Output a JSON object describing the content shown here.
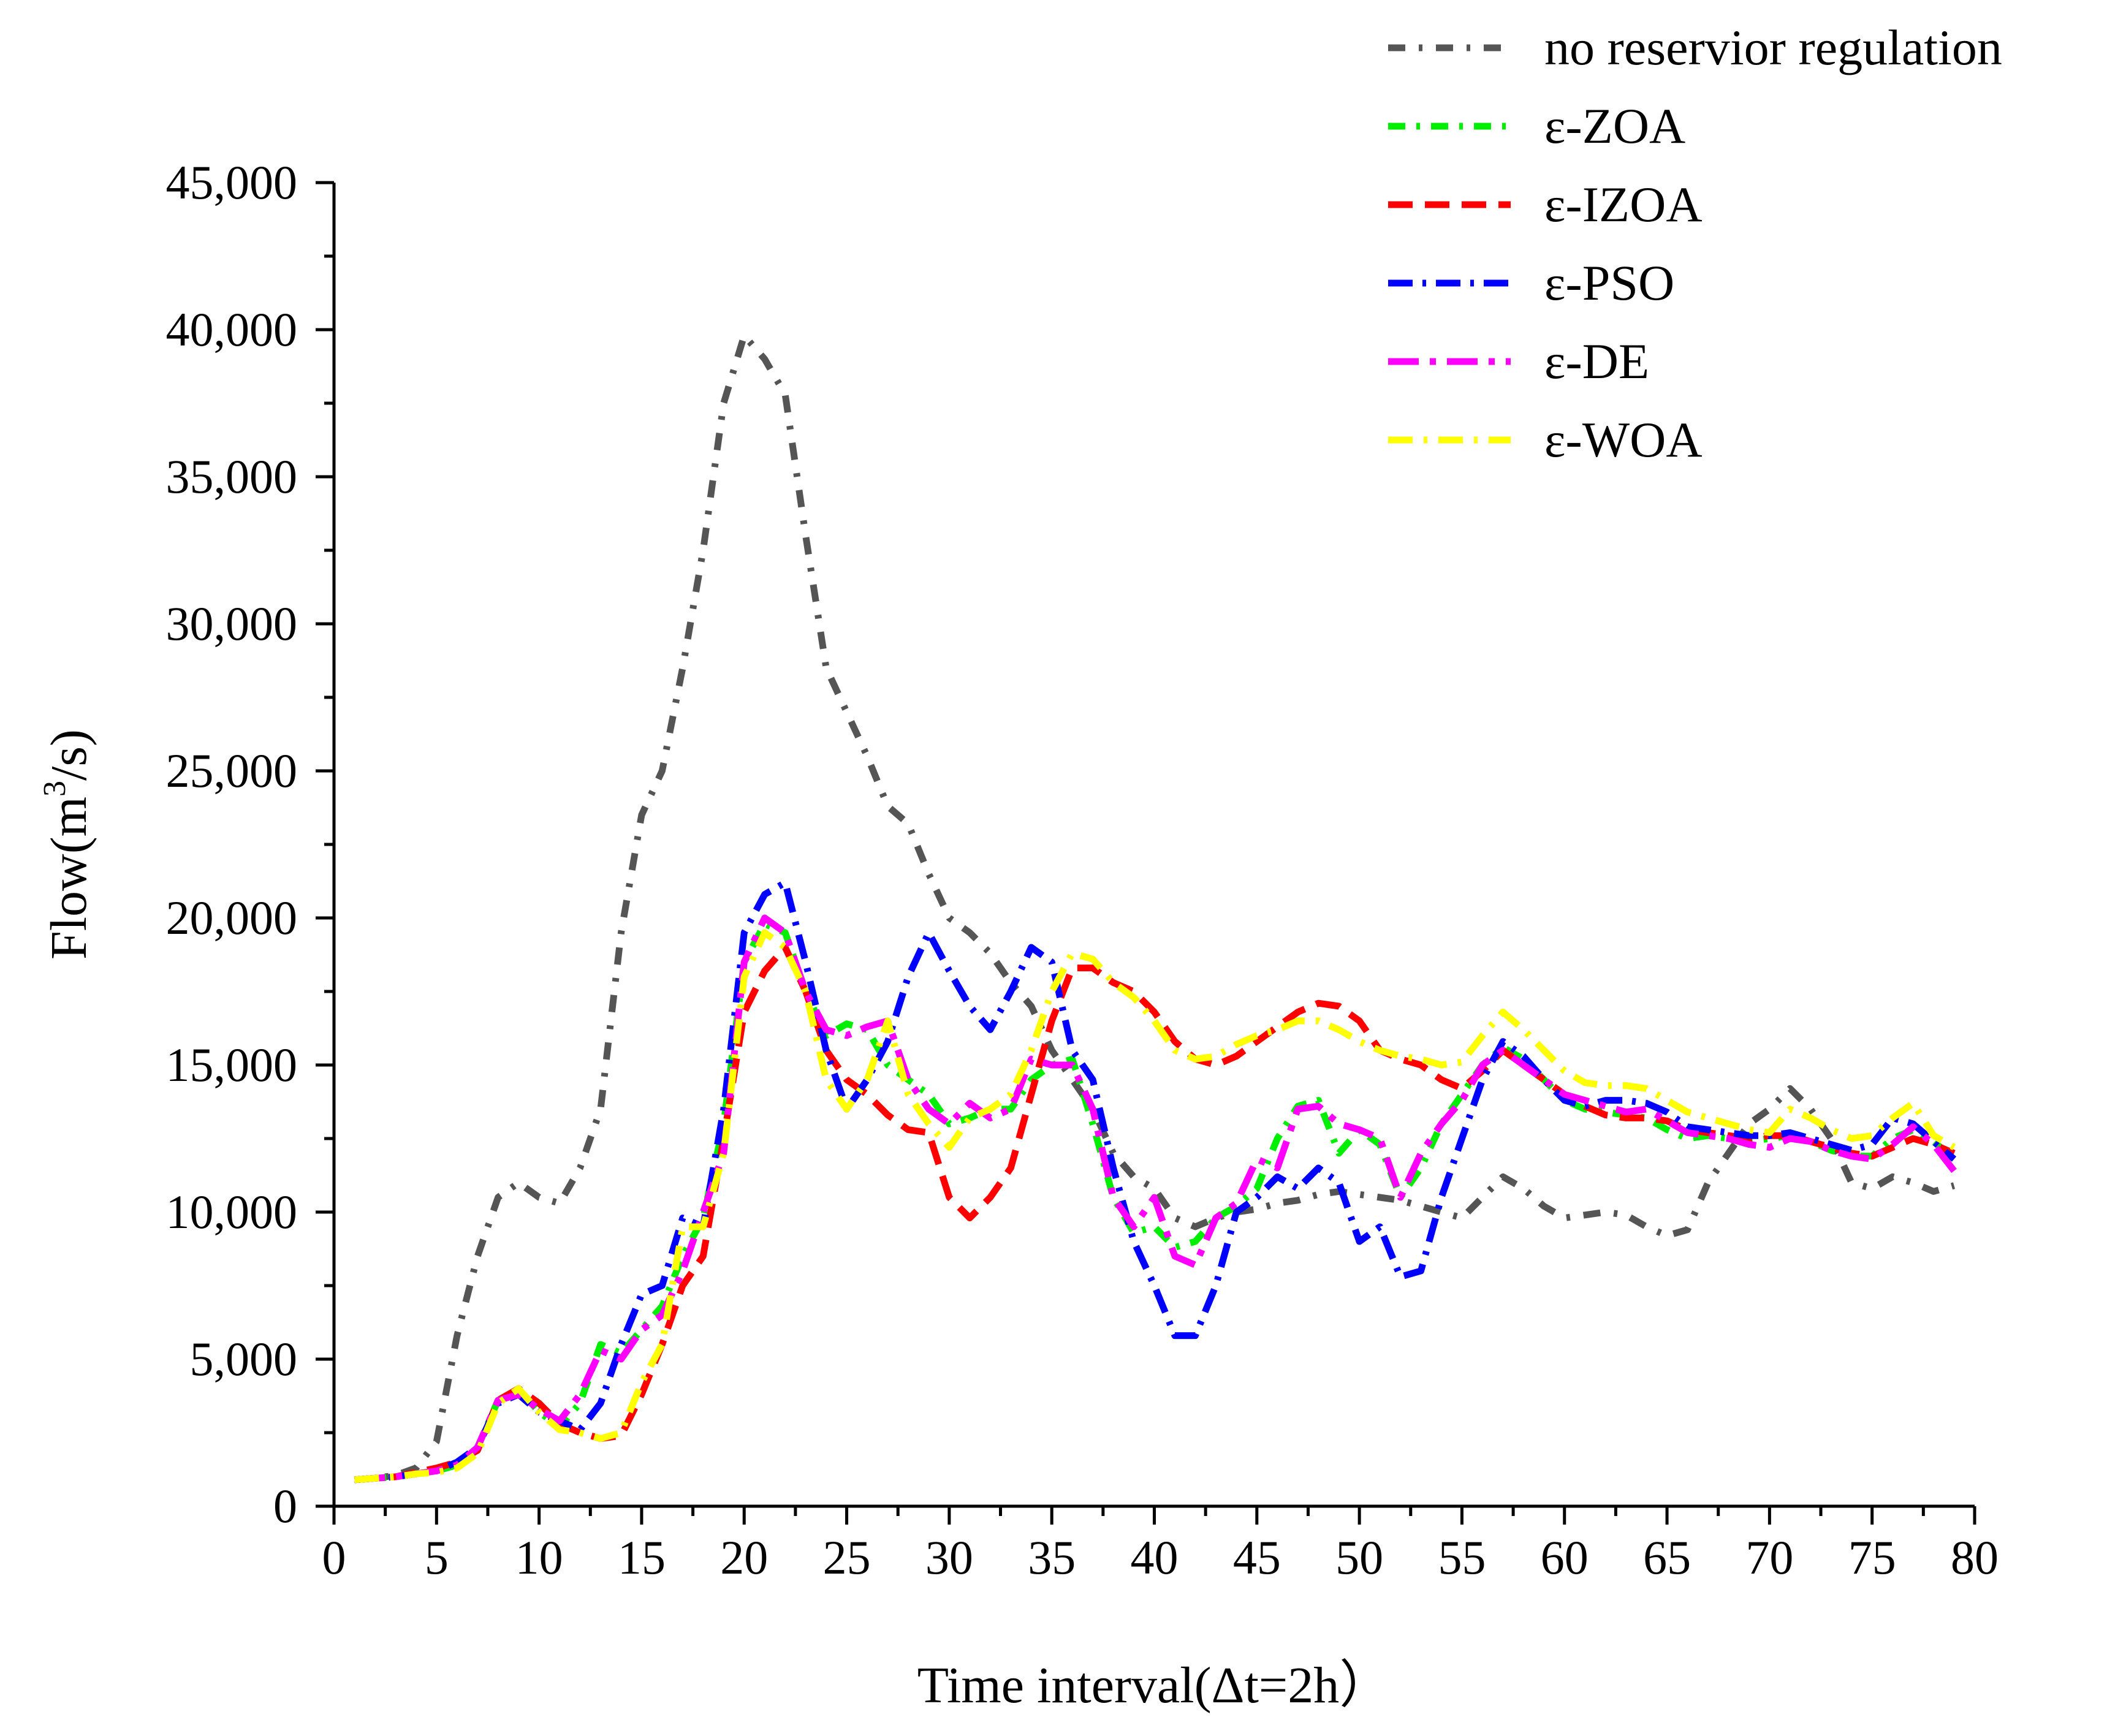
{
  "chart_data": {
    "type": "line",
    "title": "",
    "xlabel": "Time interval(Δt=2h）",
    "ylabel_prefix": "Flow(m",
    "ylabel_sup": "3",
    "ylabel_suffix": "/s)",
    "xlim": [
      0,
      80
    ],
    "ylim": [
      0,
      45000
    ],
    "x_ticks": [
      0,
      5,
      10,
      15,
      20,
      25,
      30,
      35,
      40,
      45,
      50,
      55,
      60,
      65,
      70,
      75,
      80
    ],
    "x_tick_labels": [
      "0",
      "5",
      "10",
      "15",
      "20",
      "25",
      "30",
      "35",
      "40",
      "45",
      "50",
      "55",
      "60",
      "65",
      "70",
      "75",
      "80"
    ],
    "y_ticks": [
      0,
      5000,
      10000,
      15000,
      20000,
      25000,
      30000,
      35000,
      40000,
      45000
    ],
    "y_tick_labels": [
      "0",
      "5,000",
      "10,000",
      "15,000",
      "20,000",
      "25,000",
      "30,000",
      "35,000",
      "40,000",
      "45,000"
    ],
    "legend_position": "top-right",
    "grid": false,
    "x": [
      1,
      2,
      3,
      4,
      5,
      6,
      7,
      8,
      9,
      10,
      11,
      12,
      13,
      14,
      15,
      16,
      17,
      18,
      19,
      20,
      21,
      22,
      23,
      24,
      25,
      26,
      27,
      28,
      29,
      30,
      31,
      32,
      33,
      34,
      35,
      36,
      37,
      38,
      39,
      40,
      41,
      42,
      43,
      44,
      45,
      46,
      47,
      48,
      49,
      50,
      51,
      52,
      53,
      54,
      55,
      56,
      57,
      58,
      59,
      60,
      61,
      62,
      63,
      64,
      65,
      66,
      67,
      68,
      69,
      70,
      71,
      72,
      73,
      74,
      75,
      76,
      77,
      78,
      79
    ],
    "series": [
      {
        "name": "no reservior regulation",
        "color": "#555555",
        "dash": "28 22 6 22",
        "values": [
          900,
          950,
          1050,
          1300,
          2200,
          5800,
          8500,
          10500,
          11000,
          10500,
          10300,
          11500,
          13500,
          19500,
          23500,
          25000,
          28500,
          32500,
          37500,
          39800,
          39000,
          37800,
          33000,
          28500,
          27000,
          25500,
          23800,
          23200,
          21500,
          20000,
          19500,
          18800,
          17800,
          17000,
          15500,
          14500,
          13500,
          12000,
          11200,
          10800,
          9800,
          9500,
          9800,
          10000,
          10100,
          10300,
          10400,
          10600,
          10700,
          10600,
          10500,
          10400,
          10200,
          10000,
          9800,
          10500,
          11200,
          10800,
          10200,
          9800,
          9900,
          10000,
          9900,
          9500,
          9200,
          9400,
          11000,
          12000,
          13000,
          13500,
          14200,
          13500,
          12500,
          11000,
          10800,
          11200,
          11000,
          10700,
          10900
        ]
      },
      {
        "name": "ε-ZOA",
        "color": "#00ee00",
        "dash": "28 18 6 18",
        "values": [
          900,
          950,
          1000,
          1100,
          1200,
          1400,
          2000,
          3600,
          4000,
          3200,
          2700,
          3500,
          5500,
          5200,
          6000,
          6800,
          8500,
          9800,
          13000,
          18500,
          19800,
          19500,
          17500,
          16000,
          16400,
          16200,
          15000,
          14500,
          14000,
          13000,
          13200,
          13500,
          13500,
          14500,
          15000,
          15200,
          13000,
          10500,
          9300,
          9500,
          8800,
          9000,
          9800,
          10200,
          10800,
          12500,
          13600,
          13800,
          12000,
          12800,
          12300,
          10500,
          11500,
          13000,
          14000,
          15000,
          15600,
          15200,
          14500,
          13800,
          13500,
          13400,
          13300,
          13200,
          12800,
          12500,
          12600,
          12500,
          12400,
          12500,
          12600,
          12400,
          12100,
          11900,
          11900,
          12500,
          12800,
          12400,
          11800
        ]
      },
      {
        "name": "ε-IZOA",
        "color": "#ff0000",
        "dash": "40 20",
        "values": [
          900,
          950,
          1000,
          1150,
          1300,
          1500,
          1900,
          3600,
          4000,
          3500,
          2800,
          2500,
          2300,
          2400,
          3800,
          5500,
          7500,
          8500,
          12500,
          16800,
          18200,
          19000,
          17500,
          15500,
          14500,
          14000,
          13300,
          12800,
          12700,
          10500,
          9800,
          10500,
          11500,
          14000,
          16500,
          18300,
          18300,
          17800,
          17500,
          16800,
          15800,
          15200,
          15000,
          15300,
          15800,
          16300,
          16800,
          17100,
          17000,
          16500,
          15500,
          15200,
          15000,
          14500,
          14200,
          14800,
          15500,
          15000,
          14500,
          14000,
          13600,
          13300,
          13200,
          13200,
          13100,
          12800,
          12700,
          12600,
          12500,
          12600,
          12600,
          12400,
          12200,
          12000,
          11900,
          12200,
          12500,
          12300,
          12000
        ]
      },
      {
        "name": "ε-PSO",
        "color": "#0000ff",
        "dash": "40 16 6 16",
        "values": [
          900,
          950,
          1000,
          1100,
          1200,
          1500,
          2000,
          3500,
          3800,
          3200,
          2900,
          2600,
          3500,
          5500,
          7200,
          7500,
          9800,
          9500,
          13500,
          19500,
          20800,
          21200,
          18500,
          15500,
          13500,
          14500,
          15800,
          18000,
          19500,
          18200,
          17000,
          16200,
          17500,
          19000,
          18500,
          15500,
          14500,
          11500,
          9000,
          7500,
          5800,
          5800,
          7500,
          10000,
          10500,
          11200,
          10800,
          11500,
          11000,
          9000,
          9500,
          7800,
          8000,
          10500,
          12500,
          14500,
          15800,
          15300,
          14500,
          13800,
          13600,
          13800,
          13800,
          13700,
          13400,
          12900,
          12800,
          12700,
          12600,
          12600,
          12700,
          12500,
          12300,
          12100,
          12300,
          13200,
          13000,
          12400,
          11800
        ]
      },
      {
        "name": "ε-DE",
        "color": "#ff00ff",
        "dash": "50 18 10 18",
        "values": [
          900,
          950,
          1000,
          1100,
          1200,
          1400,
          2000,
          3600,
          3800,
          3300,
          2900,
          3800,
          5300,
          5000,
          6000,
          6500,
          8000,
          10000,
          12000,
          18500,
          20000,
          19500,
          17500,
          16200,
          16000,
          16300,
          16500,
          14500,
          13500,
          13000,
          13700,
          13200,
          13500,
          15200,
          15000,
          15000,
          13500,
          10500,
          9500,
          10500,
          8500,
          8200,
          9800,
          10300,
          11800,
          11500,
          13500,
          13600,
          13000,
          12800,
          12500,
          10500,
          12000,
          13000,
          13800,
          15000,
          15500,
          15000,
          14500,
          14000,
          13800,
          13600,
          13400,
          13500,
          13100,
          12700,
          12600,
          12500,
          12300,
          12200,
          12500,
          12400,
          12100,
          11900,
          11800,
          12300,
          12900,
          12300,
          11400
        ]
      },
      {
        "name": "ε-WOA",
        "color": "#ffff00",
        "dash": "40 18 6 18",
        "values": [
          900,
          950,
          1000,
          1100,
          1150,
          1300,
          1800,
          3500,
          4000,
          3200,
          2600,
          2500,
          2300,
          2500,
          4200,
          5500,
          9500,
          9500,
          12000,
          18000,
          19500,
          19000,
          17500,
          14500,
          13500,
          14500,
          16500,
          14000,
          13000,
          12200,
          13200,
          13500,
          14000,
          15500,
          17500,
          18800,
          18600,
          17800,
          17300,
          16500,
          15500,
          15200,
          15300,
          15700,
          16000,
          16200,
          16500,
          16500,
          16200,
          15800,
          15500,
          15300,
          15200,
          15000,
          15100,
          16000,
          16800,
          16200,
          15500,
          14800,
          14400,
          14300,
          14300,
          14200,
          13800,
          13400,
          13200,
          13000,
          12800,
          12700,
          13500,
          13200,
          12800,
          12500,
          12600,
          13200,
          13700,
          12600,
          12200
        ]
      }
    ]
  }
}
